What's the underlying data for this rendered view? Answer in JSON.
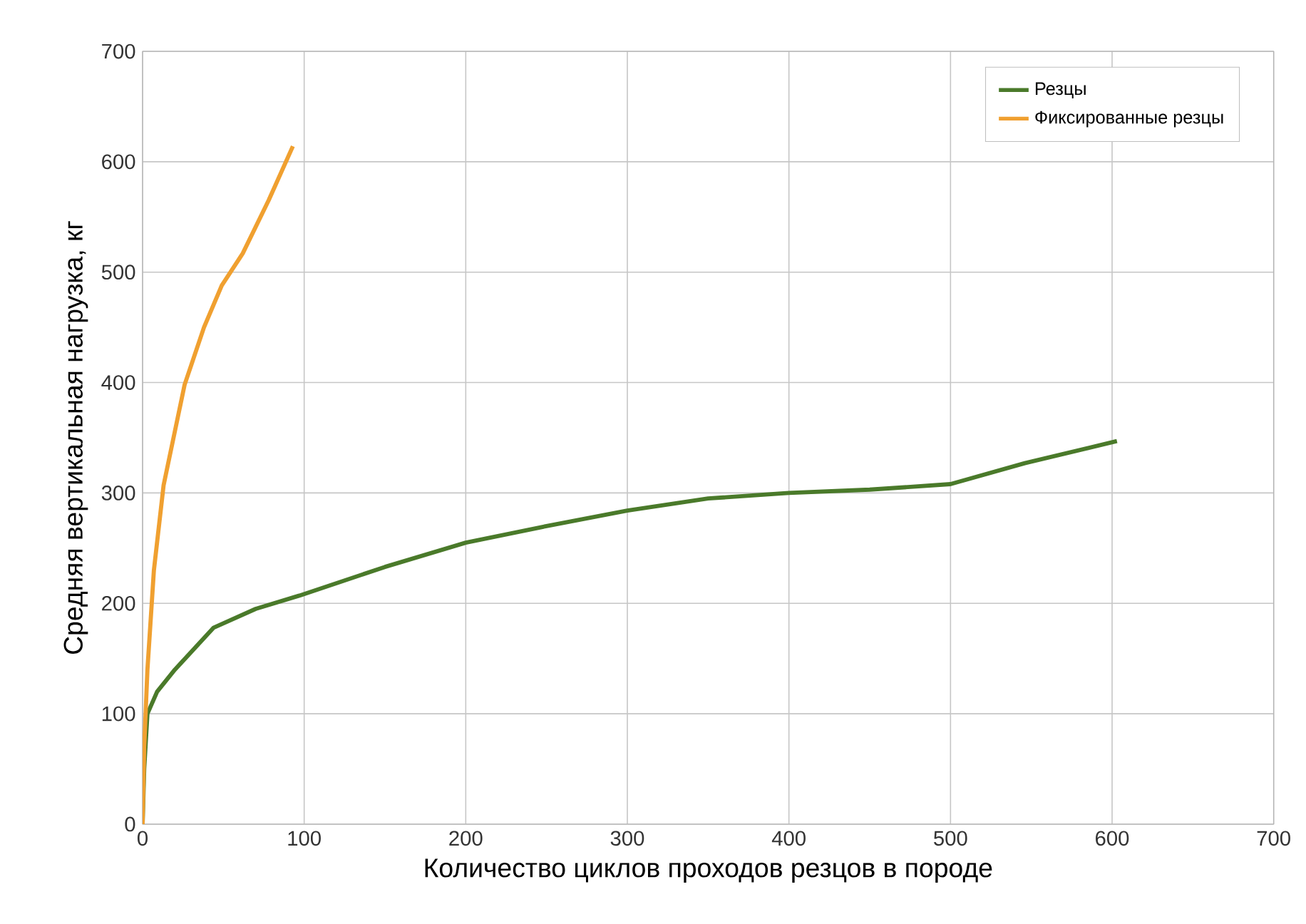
{
  "chart_data": {
    "type": "line",
    "xlabel": "Количество циклов проходов резцов в породе",
    "ylabel": "Средняя вертикальная нагрузка, кг",
    "xlim": [
      0,
      700
    ],
    "ylim": [
      0,
      700
    ],
    "xticks": [
      0,
      100,
      200,
      300,
      400,
      500,
      600,
      700
    ],
    "yticks": [
      0,
      100,
      200,
      300,
      400,
      500,
      600,
      700
    ],
    "grid": true,
    "legend": "top right",
    "marker": "none",
    "line_style": "solid",
    "series": [
      {
        "name": "Резцы",
        "color": "#4a7a2a",
        "x": [
          0,
          1,
          3,
          9,
          20,
          44,
          70,
          97,
          150,
          200,
          250,
          300,
          350,
          400,
          450,
          500,
          546,
          603
        ],
        "values": [
          0,
          50,
          100,
          120,
          140,
          178,
          195,
          207,
          233,
          255,
          270,
          284,
          295,
          300,
          303,
          308,
          327,
          347
        ]
      },
      {
        "name": "Фиксированные резцы",
        "color": "#f0a030",
        "x": [
          0,
          1,
          3,
          7,
          13,
          26,
          38,
          49,
          62,
          78,
          93
        ],
        "values": [
          0,
          70,
          140,
          230,
          307,
          398,
          450,
          488,
          517,
          565,
          614
        ]
      }
    ]
  }
}
